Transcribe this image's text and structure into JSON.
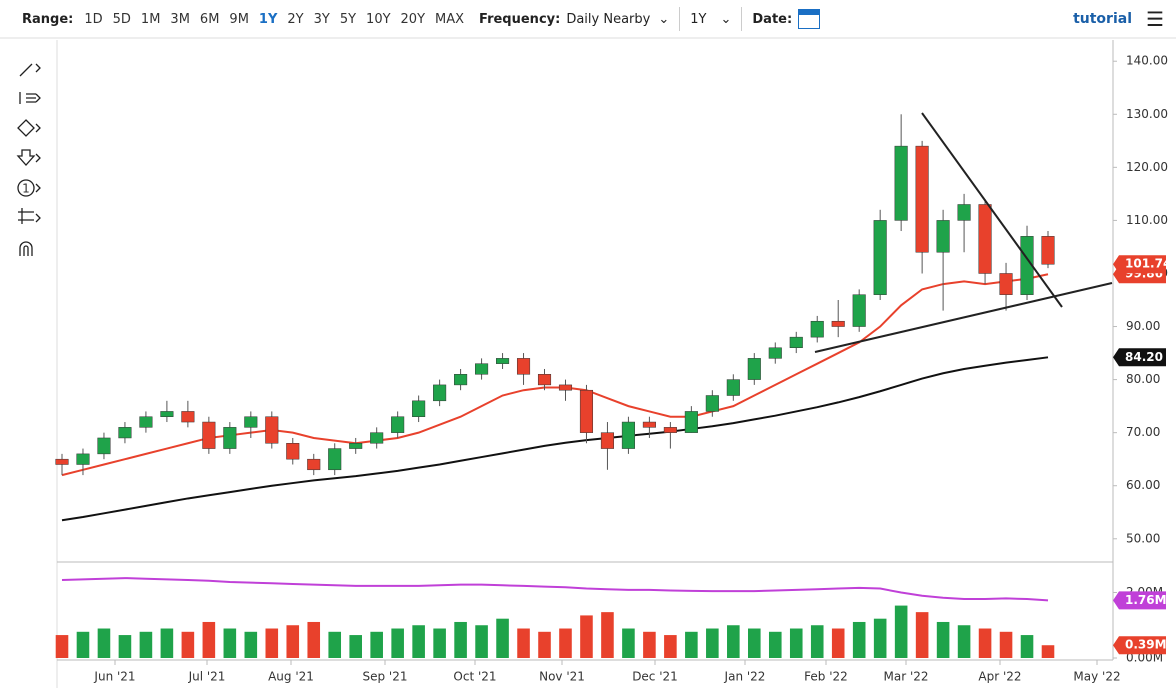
{
  "toolbar": {
    "range_label": "Range:",
    "ranges": [
      "1D",
      "5D",
      "1M",
      "3M",
      "6M",
      "9M",
      "1Y",
      "2Y",
      "3Y",
      "5Y",
      "10Y",
      "20Y",
      "MAX"
    ],
    "active_range": 6,
    "frequency_label": "Frequency:",
    "frequency": "Daily Nearby",
    "period": "1Y",
    "date_label": "Date:",
    "tutorial": "tutorial",
    "tool_counter": "1"
  },
  "chart_data": {
    "type": "candlestick",
    "ohlc": [
      [
        65,
        66,
        62,
        64
      ],
      [
        64,
        67,
        62,
        66
      ],
      [
        66,
        70,
        65,
        69
      ],
      [
        69,
        72,
        68,
        71
      ],
      [
        71,
        74,
        70,
        73
      ],
      [
        73,
        76,
        72,
        74
      ],
      [
        74,
        76,
        71,
        72
      ],
      [
        72,
        73,
        66,
        67
      ],
      [
        67,
        72,
        66,
        71
      ],
      [
        71,
        74,
        69,
        73
      ],
      [
        73,
        74,
        67,
        68
      ],
      [
        68,
        69,
        64,
        65
      ],
      [
        65,
        66,
        62,
        63
      ],
      [
        63,
        68,
        62,
        67
      ],
      [
        67,
        69,
        66,
        68
      ],
      [
        68,
        71,
        67,
        70
      ],
      [
        70,
        74,
        69,
        73
      ],
      [
        73,
        77,
        72,
        76
      ],
      [
        76,
        80,
        75,
        79
      ],
      [
        79,
        82,
        78,
        81
      ],
      [
        81,
        84,
        80,
        83
      ],
      [
        83,
        85,
        82,
        84
      ],
      [
        84,
        85,
        79,
        81
      ],
      [
        81,
        82,
        78,
        79
      ],
      [
        79,
        80,
        76,
        78
      ],
      [
        78,
        79,
        68,
        70
      ],
      [
        70,
        72,
        63,
        67
      ],
      [
        67,
        73,
        66,
        72
      ],
      [
        72,
        73,
        69,
        71
      ],
      [
        71,
        72,
        67,
        70
      ],
      [
        70,
        75,
        70,
        74
      ],
      [
        74,
        78,
        73,
        77
      ],
      [
        77,
        81,
        76,
        80
      ],
      [
        80,
        85,
        79,
        84
      ],
      [
        84,
        87,
        83,
        86
      ],
      [
        86,
        89,
        85,
        88
      ],
      [
        88,
        92,
        87,
        91
      ],
      [
        91,
        95,
        88,
        90
      ],
      [
        90,
        97,
        89,
        96
      ],
      [
        96,
        112,
        95,
        110
      ],
      [
        110,
        130,
        108,
        124
      ],
      [
        124,
        125,
        100,
        104
      ],
      [
        104,
        112,
        93,
        110
      ],
      [
        110,
        115,
        104,
        113
      ],
      [
        113,
        114,
        98,
        100
      ],
      [
        100,
        102,
        93,
        96
      ],
      [
        96,
        109,
        95,
        107
      ],
      [
        107,
        108,
        101,
        101.74
      ]
    ],
    "up_color": "#1fa34a",
    "down_color": "#e8412c",
    "lines": [
      {
        "color": "#e8412c",
        "values": [
          62,
          63,
          64,
          65,
          66,
          67,
          68,
          69,
          69.5,
          70,
          70.5,
          70,
          69,
          68.5,
          68,
          68.5,
          69,
          70,
          71.5,
          73,
          75,
          77,
          78,
          78.5,
          78.5,
          78,
          76.5,
          75,
          74,
          73,
          73,
          74,
          75,
          77,
          79,
          81,
          83,
          85,
          87,
          90,
          94,
          97,
          98,
          98.5,
          98,
          98.5,
          99,
          99.86
        ]
      },
      {
        "color": "#111111",
        "values": [
          53.5,
          54.1,
          54.8,
          55.5,
          56.2,
          56.9,
          57.6,
          58.2,
          58.8,
          59.4,
          60,
          60.5,
          61,
          61.4,
          61.8,
          62.3,
          62.8,
          63.4,
          64,
          64.7,
          65.4,
          66.1,
          66.8,
          67.5,
          68.1,
          68.6,
          69,
          69.4,
          69.8,
          70.2,
          70.7,
          71.2,
          71.8,
          72.5,
          73.2,
          74,
          74.8,
          75.7,
          76.7,
          77.8,
          79,
          80.2,
          81.2,
          82,
          82.6,
          83.2,
          83.7,
          84.2
        ]
      }
    ],
    "ylim": [
      46,
      144
    ],
    "yticks": [
      {
        "value": 140,
        "label": "140.00"
      },
      {
        "value": 130,
        "label": "130.00"
      },
      {
        "value": 120,
        "label": "120.00"
      },
      {
        "value": 110,
        "label": "110.00"
      },
      {
        "value": 100,
        "label": "100.00"
      },
      {
        "value": 90,
        "label": "90.00"
      },
      {
        "value": 80,
        "label": "80.00"
      },
      {
        "value": 70,
        "label": "70.00"
      },
      {
        "value": 60,
        "label": "60.00"
      },
      {
        "value": 50,
        "label": "50.00"
      }
    ],
    "price_badges": [
      {
        "value": 99.86,
        "label": "99.86",
        "color": "#e8412c"
      },
      {
        "value": 101.74,
        "label": "101.74",
        "color": "#e8412c"
      },
      {
        "value": 84.2,
        "label": "84.20",
        "color": "#111111"
      }
    ],
    "volume": [
      0.7,
      0.8,
      0.9,
      0.7,
      0.8,
      0.9,
      0.8,
      1.1,
      0.9,
      0.8,
      0.9,
      1.0,
      1.1,
      0.8,
      0.7,
      0.8,
      0.9,
      1.0,
      0.9,
      1.1,
      1.0,
      1.2,
      0.9,
      0.8,
      0.9,
      1.3,
      1.4,
      0.9,
      0.8,
      0.7,
      0.8,
      0.9,
      1.0,
      0.9,
      0.8,
      0.9,
      1.0,
      0.9,
      1.1,
      1.2,
      1.6,
      1.4,
      1.1,
      1.0,
      0.9,
      0.8,
      0.7,
      0.39
    ],
    "open_interest": {
      "color": "#c040d8",
      "values": [
        2.38,
        2.4,
        2.42,
        2.44,
        2.42,
        2.4,
        2.38,
        2.36,
        2.32,
        2.3,
        2.28,
        2.26,
        2.24,
        2.22,
        2.2,
        2.2,
        2.2,
        2.2,
        2.22,
        2.24,
        2.24,
        2.22,
        2.2,
        2.18,
        2.16,
        2.12,
        2.1,
        2.08,
        2.08,
        2.06,
        2.05,
        2.04,
        2.04,
        2.04,
        2.06,
        2.08,
        2.1,
        2.12,
        2.14,
        2.12,
        2.0,
        1.9,
        1.84,
        1.8,
        1.8,
        1.82,
        1.8,
        1.76
      ]
    },
    "y2lim": [
      0,
      2.9
    ],
    "y2ticks": [
      {
        "value": 0,
        "label": "0.00M"
      },
      {
        "value": 2,
        "label": "2.00M"
      }
    ],
    "volume_badges": [
      {
        "value": 1.76,
        "label": "1.76M",
        "color": "#c040d8"
      },
      {
        "value": 0.39,
        "label": "0.39M",
        "color": "#e8412c"
      }
    ],
    "x_labels": [
      "Jun '21",
      "Jul '21",
      "Aug '21",
      "Sep '21",
      "Oct '21",
      "Nov '21",
      "Dec '21",
      "Jan '22",
      "Feb '22",
      "Mar '22",
      "Apr '22",
      "May '22"
    ]
  }
}
